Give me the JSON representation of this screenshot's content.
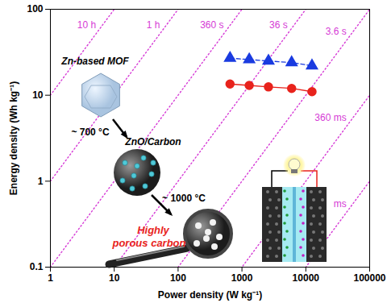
{
  "chart_data": {
    "type": "scatter",
    "xlabel": "Power density (W kg⁻¹)",
    "ylabel": "Energy density (Wh kg⁻¹)",
    "log": true,
    "grid": false,
    "xlim": [
      1,
      100000
    ],
    "ylim": [
      0.1,
      100
    ],
    "xticks": [
      1,
      10,
      100,
      1000,
      10000,
      100000
    ],
    "yticks": [
      0.1,
      1,
      10,
      100
    ],
    "series": [
      {
        "color": "#1a3be0",
        "marker": "triangle",
        "line_style": "dashed",
        "x": [
          650,
          1300,
          2600,
          6000,
          12500
        ],
        "values": [
          27,
          26,
          25,
          24,
          22
        ]
      },
      {
        "color": "#e8231c",
        "marker": "circle",
        "line_style": "solid",
        "x": [
          650,
          1300,
          2600,
          6000,
          12500
        ],
        "values": [
          13.5,
          13,
          12.5,
          12,
          11
        ]
      }
    ],
    "time_lines": {
      "color": "#d63bd6",
      "line_style": "dotted",
      "labels": [
        "10 h",
        "1 h",
        "360 s",
        "36 s",
        "3.6 s",
        "360 ms",
        "ms"
      ],
      "values": [
        36000,
        3600,
        360,
        36,
        3.6,
        0.36,
        0.036
      ]
    },
    "annotations": [
      "Zn-based MOF",
      "~ 700 °C",
      "ZnO/Carbon",
      "~ 1000 °C",
      "Highly porous carbon"
    ]
  }
}
